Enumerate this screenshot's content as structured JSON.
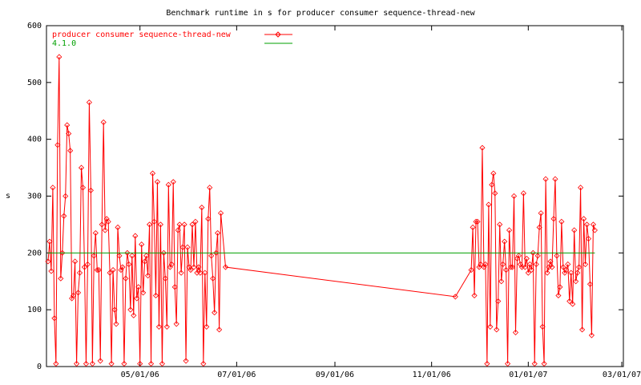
{
  "chart_data": {
    "type": "line",
    "title": "Benchmark runtime in s for producer consumer sequence-thread-new",
    "ylabel": "s",
    "xlim": [
      "03/03/06",
      "03/02/07"
    ],
    "xticks": [
      "05/01/06",
      "07/01/06",
      "09/01/06",
      "11/01/06",
      "01/01/07",
      "03/01/07"
    ],
    "ylim": [
      0,
      600
    ],
    "yticks": [
      0,
      100,
      200,
      300,
      400,
      500,
      600
    ],
    "legend": "top-left",
    "series": [
      {
        "name": "producer consumer sequence-thread-new",
        "color": "#ff0000",
        "markers": true,
        "x": [
          "03/04/06",
          "03/05/06",
          "03/06/06",
          "03/07/06",
          "03/08/06",
          "03/09/06",
          "03/10/06",
          "03/11/06",
          "03/12/06",
          "03/13/06",
          "03/14/06",
          "03/15/06",
          "03/16/06",
          "03/17/06",
          "03/18/06",
          "03/19/06",
          "03/20/06",
          "03/21/06",
          "03/22/06",
          "03/23/06",
          "03/24/06",
          "03/25/06",
          "03/26/06",
          "03/27/06",
          "03/28/06",
          "03/29/06",
          "03/30/06",
          "03/31/06",
          "04/01/06",
          "04/02/06",
          "04/03/06",
          "04/04/06",
          "04/05/06",
          "04/06/06",
          "04/07/06",
          "04/08/06",
          "04/09/06",
          "04/10/06",
          "04/11/06",
          "04/12/06",
          "04/13/06",
          "04/14/06",
          "04/15/06",
          "04/16/06",
          "04/17/06",
          "04/18/06",
          "04/19/06",
          "04/20/06",
          "04/21/06",
          "04/22/06",
          "04/23/06",
          "04/24/06",
          "04/25/06",
          "04/26/06",
          "04/27/06",
          "04/28/06",
          "04/29/06",
          "04/30/06",
          "05/01/06",
          "05/02/06",
          "05/03/06",
          "05/04/06",
          "05/05/06",
          "05/06/06",
          "05/07/06",
          "05/08/06",
          "05/09/06",
          "05/10/06",
          "05/11/06",
          "05/12/06",
          "05/13/06",
          "05/14/06",
          "05/15/06",
          "05/16/06",
          "05/17/06",
          "05/18/06",
          "05/19/06",
          "05/20/06",
          "05/21/06",
          "05/22/06",
          "05/23/06",
          "05/24/06",
          "05/25/06",
          "05/26/06",
          "05/27/06",
          "05/28/06",
          "05/29/06",
          "05/30/06",
          "05/31/06",
          "06/01/06",
          "06/02/06",
          "06/03/06",
          "06/04/06",
          "06/05/06",
          "06/06/06",
          "06/07/06",
          "06/08/06",
          "06/09/06",
          "06/10/06",
          "06/11/06",
          "06/12/06",
          "06/13/06",
          "06/14/06",
          "06/15/06",
          "06/16/06",
          "06/17/06",
          "06/18/06",
          "06/19/06",
          "06/20/06",
          "06/21/06",
          "06/24/06",
          "11/16/06",
          "11/26/06",
          "11/27/06",
          "11/28/06",
          "11/29/06",
          "11/30/06",
          "12/01/06",
          "12/02/06",
          "12/03/06",
          "12/04/06",
          "12/05/06",
          "12/06/06",
          "12/07/06",
          "12/08/06",
          "12/09/06",
          "12/10/06",
          "12/11/06",
          "12/12/06",
          "12/13/06",
          "12/14/06",
          "12/15/06",
          "12/16/06",
          "12/17/06",
          "12/18/06",
          "12/19/06",
          "12/20/06",
          "12/21/06",
          "12/22/06",
          "12/23/06",
          "12/24/06",
          "12/25/06",
          "12/26/06",
          "12/27/06",
          "12/28/06",
          "12/29/06",
          "12/30/06",
          "12/31/06",
          "01/01/07",
          "01/02/07",
          "01/03/07",
          "01/04/07",
          "01/05/07",
          "01/06/07",
          "01/07/07",
          "01/08/07",
          "01/09/07",
          "01/10/07",
          "01/11/07",
          "01/12/07",
          "01/13/07",
          "01/14/07",
          "01/15/07",
          "01/16/07",
          "01/17/07",
          "01/18/07",
          "01/19/07",
          "01/20/07",
          "01/21/07",
          "01/22/07",
          "01/23/07",
          "01/24/07",
          "01/25/07",
          "01/26/07",
          "01/27/07",
          "01/28/07",
          "01/29/07",
          "01/30/07",
          "01/31/07",
          "02/01/07",
          "02/02/07",
          "02/03/07",
          "02/04/07",
          "02/05/07",
          "02/06/07",
          "02/07/07",
          "02/08/07",
          "02/09/07",
          "02/10/07",
          "02/11/07",
          "02/12/07"
        ],
        "values": [
          185,
          220,
          168,
          315,
          85,
          5,
          390,
          545,
          155,
          200,
          265,
          300,
          425,
          410,
          380,
          120,
          125,
          185,
          5,
          130,
          165,
          350,
          315,
          175,
          5,
          180,
          465,
          310,
          5,
          195,
          235,
          170,
          170,
          10,
          250,
          430,
          240,
          260,
          255,
          165,
          5,
          170,
          100,
          75,
          245,
          195,
          170,
          175,
          5,
          155,
          200,
          180,
          100,
          195,
          90,
          230,
          120,
          140,
          5,
          215,
          130,
          185,
          195,
          160,
          250,
          5,
          340,
          255,
          125,
          325,
          70,
          250,
          5,
          200,
          155,
          70,
          320,
          175,
          180,
          325,
          140,
          75,
          240,
          250,
          165,
          210,
          250,
          10,
          210,
          175,
          170,
          250,
          175,
          255,
          165,
          175,
          165,
          280,
          5,
          165,
          70,
          260,
          315,
          195,
          155,
          95,
          200,
          235,
          65,
          270,
          175,
          123,
          170,
          245,
          125,
          255,
          255,
          175,
          180,
          385,
          175,
          180,
          5,
          285,
          70,
          320,
          340,
          305,
          65,
          115,
          250,
          150,
          180,
          220,
          170,
          5,
          240,
          175,
          175,
          300,
          60,
          190,
          195,
          180,
          175,
          305,
          175,
          190,
          165,
          180,
          170,
          200,
          5,
          180,
          195,
          245,
          270,
          70,
          5,
          330,
          165,
          175,
          185,
          175,
          260,
          330,
          195,
          125,
          140,
          255,
          175,
          165,
          170,
          180,
          115,
          165,
          110,
          240,
          150,
          165,
          175,
          315,
          65,
          260,
          180,
          250,
          225,
          145,
          55,
          250,
          240
        ]
      },
      {
        "name": "4.1.0",
        "color": "#00a000",
        "markers": false,
        "x": [
          "03/04/06",
          "02/12/07"
        ],
        "values": [
          200,
          200
        ]
      }
    ]
  }
}
